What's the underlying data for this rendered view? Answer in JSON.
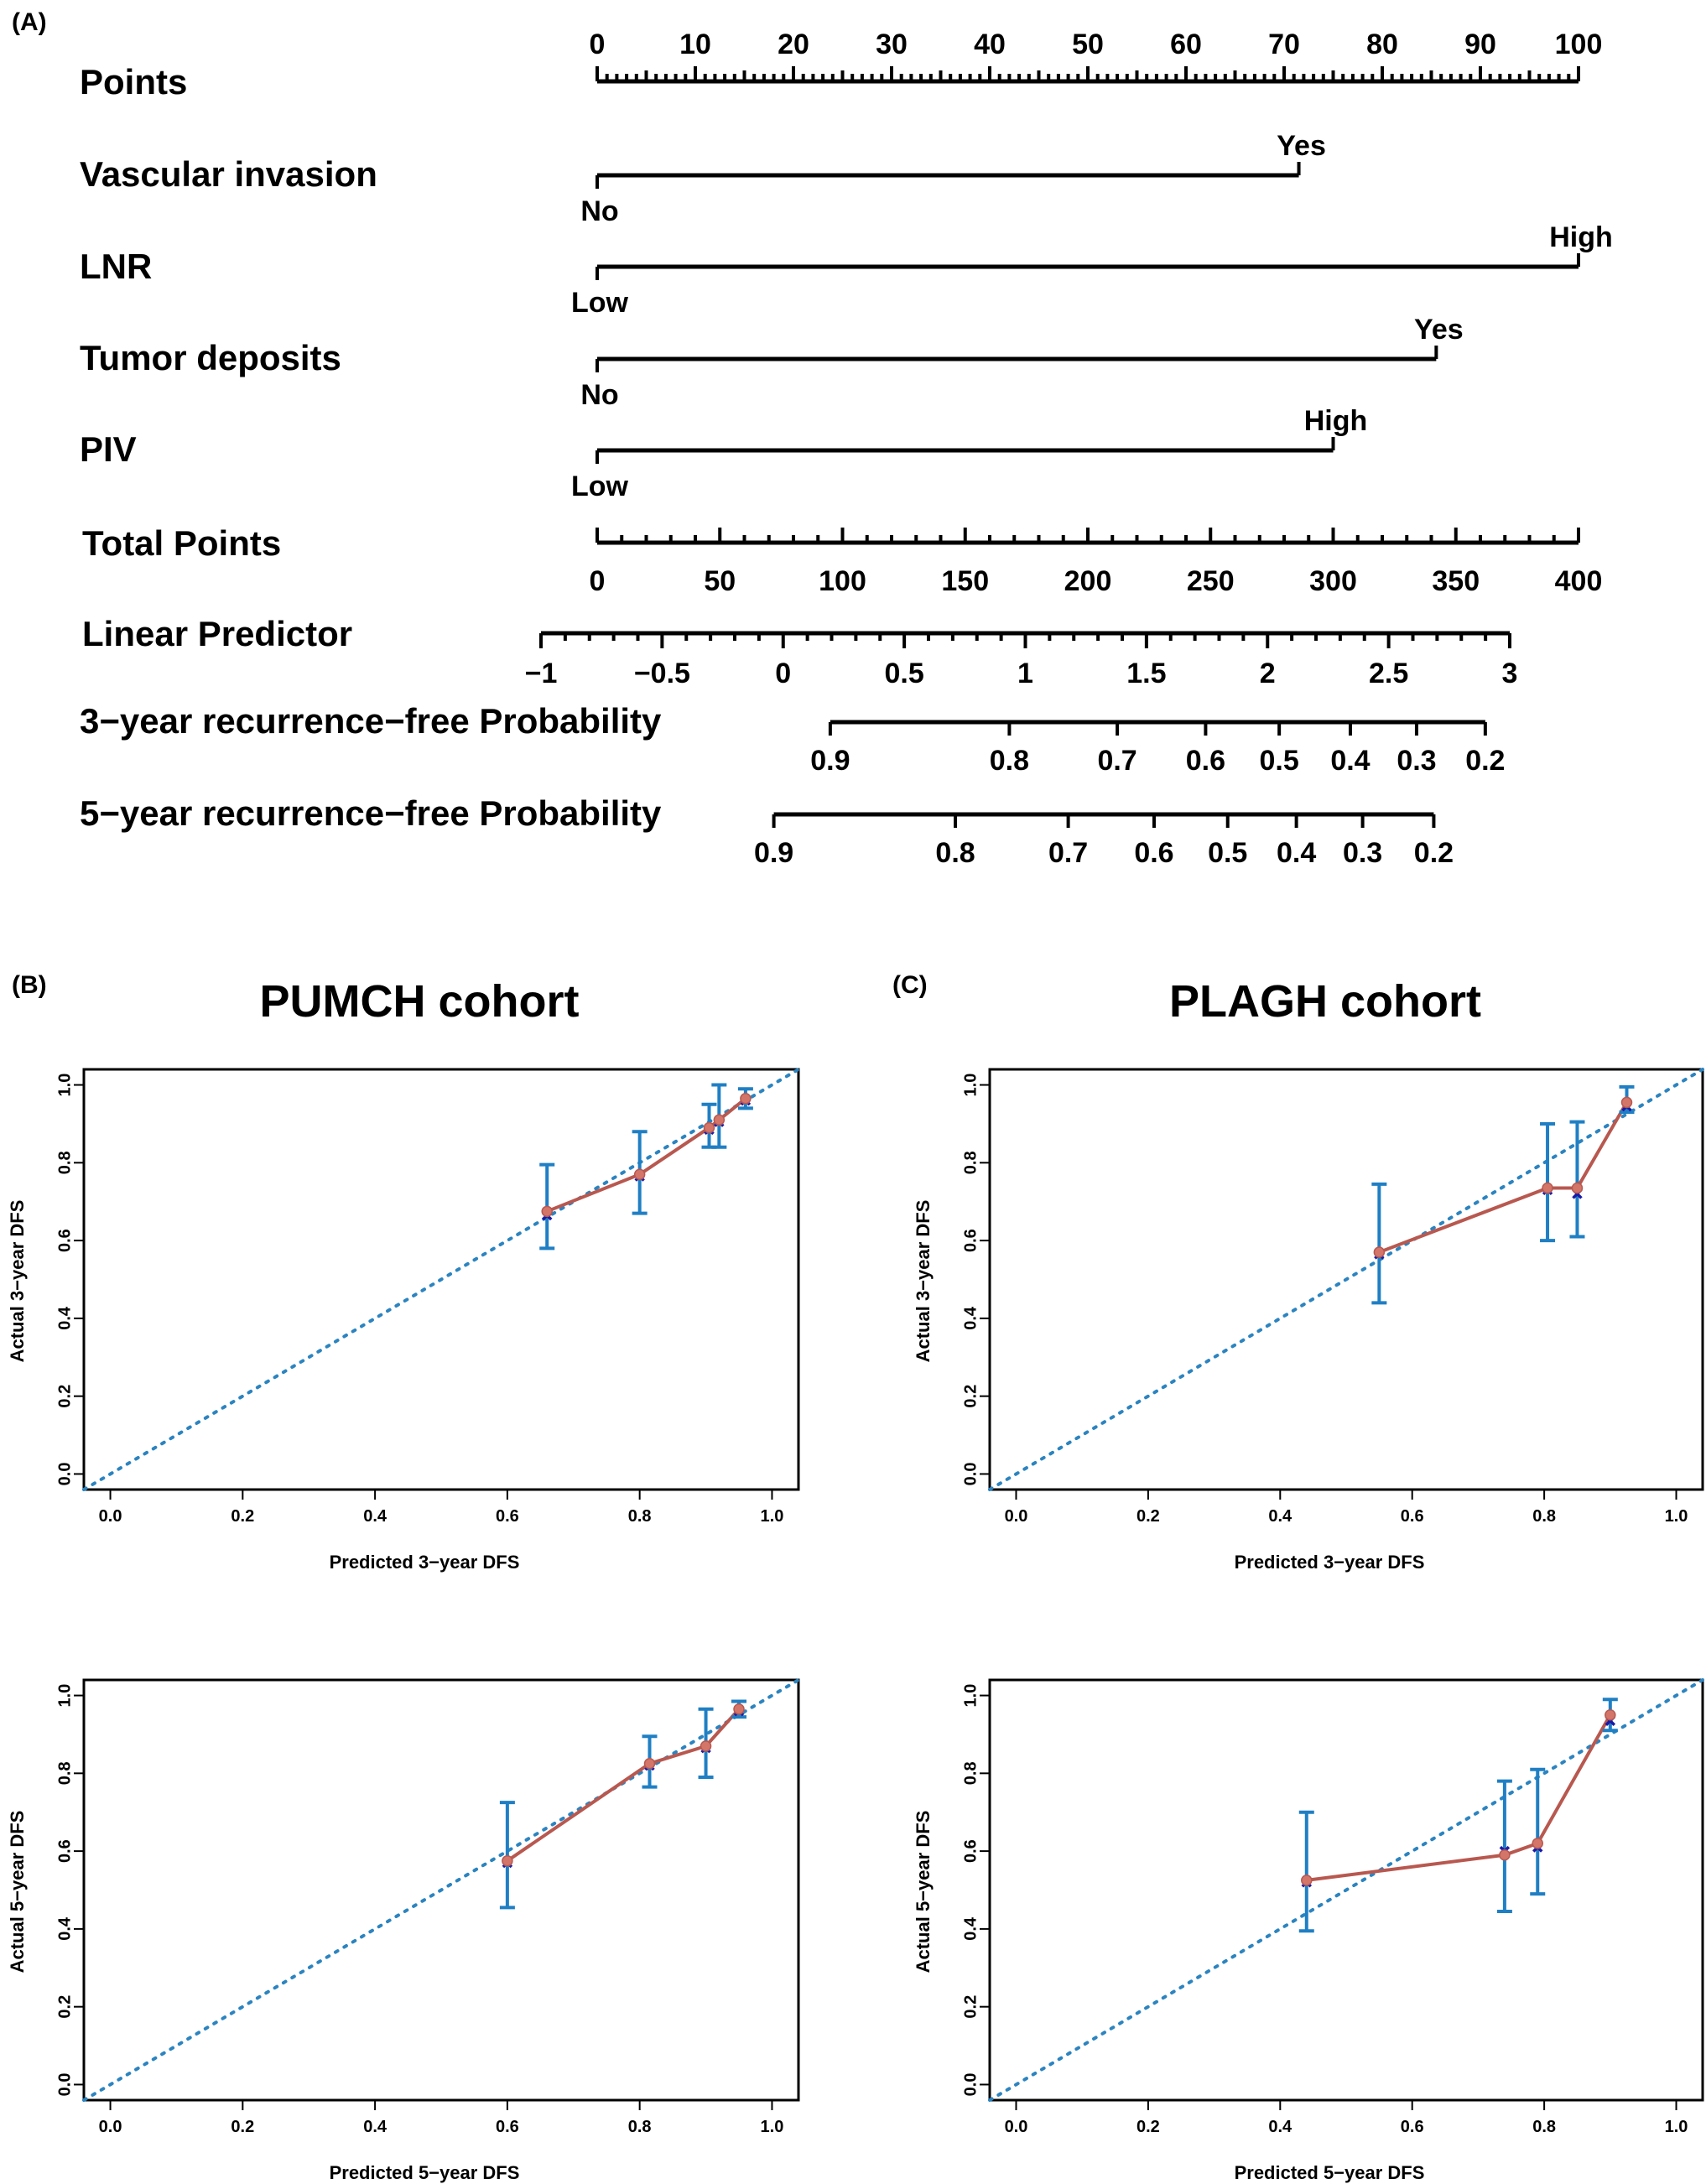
{
  "panels": {
    "a": "(A)",
    "b": "(B)",
    "c": "(C)"
  },
  "colors": {
    "axis": "#000000",
    "diagonal": "#2b84c0",
    "error_bar": "#1f7fc4",
    "line": "#b8584f",
    "observed_point": "#d4756a",
    "corrected_point": "#1a1aa8"
  },
  "chart_data": [
    {
      "type": "nomogram",
      "points_scale": {
        "label": "Points",
        "range": [
          0,
          100
        ],
        "tick_labels": [
          "0",
          "10",
          "20",
          "30",
          "40",
          "50",
          "60",
          "70",
          "80",
          "90",
          "100"
        ]
      },
      "variables": [
        {
          "label": "Vascular invasion",
          "levels": [
            {
              "name": "No",
              "points": 0
            },
            {
              "name": "Yes",
              "points": 71.5
            }
          ]
        },
        {
          "label": "LNR",
          "levels": [
            {
              "name": "Low",
              "points": 0
            },
            {
              "name": "High",
              "points": 100
            }
          ]
        },
        {
          "label": "Tumor deposits",
          "levels": [
            {
              "name": "No",
              "points": 0
            },
            {
              "name": "Yes",
              "points": 85.5
            }
          ]
        },
        {
          "label": "PIV",
          "levels": [
            {
              "name": "Low",
              "points": 0
            },
            {
              "name": "High",
              "points": 75
            }
          ]
        }
      ],
      "total_points_scale": {
        "label": "Total Points",
        "range": [
          0,
          400
        ],
        "tick_labels": [
          "0",
          "50",
          "100",
          "150",
          "200",
          "250",
          "300",
          "350",
          "400"
        ]
      },
      "linear_predictor_scale": {
        "label": "Linear Predictor",
        "range": [
          -1,
          3
        ],
        "tick_labels": [
          "−1",
          "−0.5",
          "0",
          "0.5",
          "1",
          "1.5",
          "2",
          "2.5",
          "3"
        ]
      },
      "probability_scales": [
        {
          "label": "3−year recurrence−free Probability",
          "range_total_points": [
            95,
            362
          ],
          "ticks": [
            {
              "label": "0.9",
              "total_points": 95
            },
            {
              "label": "0.8",
              "total_points": 168
            },
            {
              "label": "0.7",
              "total_points": 212
            },
            {
              "label": "0.6",
              "total_points": 248
            },
            {
              "label": "0.5",
              "total_points": 278
            },
            {
              "label": "0.4",
              "total_points": 307
            },
            {
              "label": "0.3",
              "total_points": 334
            },
            {
              "label": "0.2",
              "total_points": 362
            }
          ]
        },
        {
          "label": "5−year recurrence−free Probability",
          "range_total_points": [
            72,
            341
          ],
          "ticks": [
            {
              "label": "0.9",
              "total_points": 72
            },
            {
              "label": "0.8",
              "total_points": 146
            },
            {
              "label": "0.7",
              "total_points": 192
            },
            {
              "label": "0.6",
              "total_points": 227
            },
            {
              "label": "0.5",
              "total_points": 257
            },
            {
              "label": "0.4",
              "total_points": 285
            },
            {
              "label": "0.3",
              "total_points": 312
            },
            {
              "label": "0.2",
              "total_points": 341
            }
          ]
        }
      ]
    },
    {
      "type": "calibration",
      "title": "PUMCH cohort",
      "xlabel": "Predicted 3−year DFS",
      "ylabel": "Actual 3−year DFS",
      "xlim": [
        -0.04,
        1.04
      ],
      "ylim": [
        -0.04,
        1.04
      ],
      "tick_labels": [
        "0.0",
        "0.2",
        "0.4",
        "0.6",
        "0.8",
        "1.0"
      ],
      "x": [
        0.66,
        0.8,
        0.905,
        0.92,
        0.96
      ],
      "y": [
        0.675,
        0.77,
        0.89,
        0.91,
        0.965
      ],
      "corrected": [
        0.665,
        0.765,
        0.885,
        0.905,
        0.96
      ],
      "lower": [
        0.58,
        0.67,
        0.84,
        0.84,
        0.94
      ],
      "upper": [
        0.795,
        0.88,
        0.95,
        1.0,
        0.99
      ]
    },
    {
      "type": "calibration",
      "title": "PLAGH cohort",
      "xlabel": "Predicted 3−year DFS",
      "ylabel": "Actual 3−year DFS",
      "xlim": [
        -0.04,
        1.04
      ],
      "ylim": [
        -0.04,
        1.04
      ],
      "tick_labels": [
        "0.0",
        "0.2",
        "0.4",
        "0.6",
        "0.8",
        "1.0"
      ],
      "x": [
        0.55,
        0.805,
        0.85,
        0.925
      ],
      "y": [
        0.57,
        0.735,
        0.735,
        0.955
      ],
      "corrected": [
        0.565,
        0.73,
        0.72,
        0.945
      ],
      "lower": [
        0.44,
        0.6,
        0.61,
        0.93
      ],
      "upper": [
        0.745,
        0.9,
        0.905,
        0.995
      ]
    },
    {
      "type": "calibration",
      "title": "",
      "xlabel": "Predicted 5−year DFS",
      "ylabel": "Actual 5−year DFS",
      "xlim": [
        -0.04,
        1.04
      ],
      "ylim": [
        -0.04,
        1.04
      ],
      "tick_labels": [
        "0.0",
        "0.2",
        "0.4",
        "0.6",
        "0.8",
        "1.0"
      ],
      "x": [
        0.6,
        0.815,
        0.9,
        0.95
      ],
      "y": [
        0.575,
        0.825,
        0.87,
        0.965
      ],
      "corrected": [
        0.57,
        0.82,
        0.865,
        0.96
      ],
      "lower": [
        0.455,
        0.765,
        0.79,
        0.945
      ],
      "upper": [
        0.725,
        0.895,
        0.965,
        0.985
      ]
    },
    {
      "type": "calibration",
      "title": "",
      "xlabel": "Predicted 5−year DFS",
      "ylabel": "Actual 5−year DFS",
      "xlim": [
        -0.04,
        1.04
      ],
      "ylim": [
        -0.04,
        1.04
      ],
      "tick_labels": [
        "0.0",
        "0.2",
        "0.4",
        "0.6",
        "0.8",
        "1.0"
      ],
      "x": [
        0.44,
        0.74,
        0.79,
        0.9
      ],
      "y": [
        0.525,
        0.59,
        0.62,
        0.95
      ],
      "corrected": [
        0.52,
        0.6,
        0.61,
        0.935
      ],
      "lower": [
        0.395,
        0.445,
        0.49,
        0.91
      ],
      "upper": [
        0.7,
        0.78,
        0.81,
        0.99
      ]
    }
  ]
}
